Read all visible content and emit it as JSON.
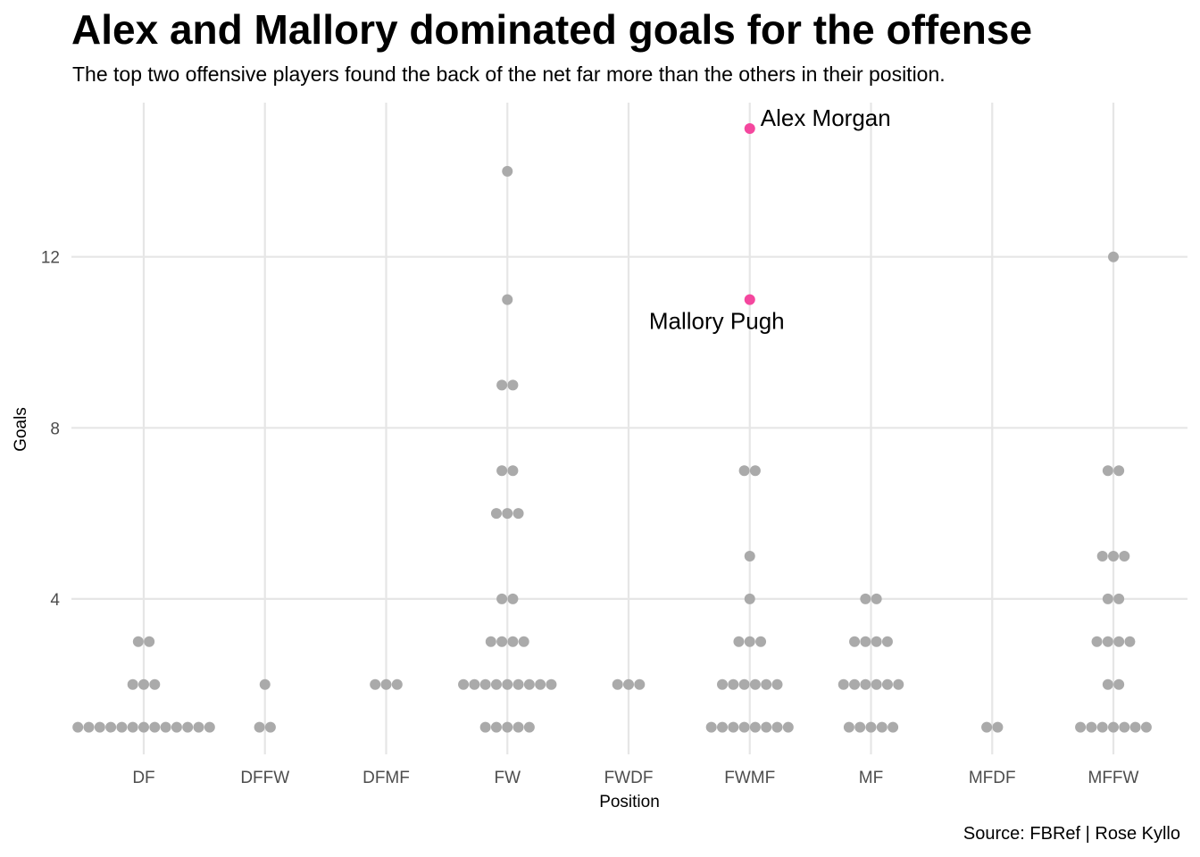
{
  "chart_data": {
    "type": "scatter",
    "subtype": "dotplot",
    "title": "Alex and Mallory dominated goals for the offense",
    "subtitle": "The top two offensive players found the back of the net far more than the others in their position.",
    "caption": "Source: FBRef | Rose Kyllo",
    "xlabel": "Position",
    "ylabel": "Goals",
    "categories": [
      "DF",
      "DFFW",
      "DFMF",
      "FW",
      "FWDF",
      "FWMF",
      "MF",
      "MFDF",
      "MFFW"
    ],
    "y_ticks": [
      4,
      8,
      12
    ],
    "ylim": [
      0.4,
      15.9
    ],
    "grid": true,
    "base_color": "#aaaaaa",
    "highlight_color": "#f4479e",
    "points": [
      {
        "position": "DF",
        "goals": 1,
        "count": 13
      },
      {
        "position": "DF",
        "goals": 2,
        "count": 3
      },
      {
        "position": "DF",
        "goals": 3,
        "count": 2
      },
      {
        "position": "DFFW",
        "goals": 1,
        "count": 2
      },
      {
        "position": "DFFW",
        "goals": 2,
        "count": 1
      },
      {
        "position": "DFMF",
        "goals": 2,
        "count": 3
      },
      {
        "position": "FW",
        "goals": 1,
        "count": 5
      },
      {
        "position": "FW",
        "goals": 2,
        "count": 9
      },
      {
        "position": "FW",
        "goals": 3,
        "count": 4
      },
      {
        "position": "FW",
        "goals": 4,
        "count": 2
      },
      {
        "position": "FW",
        "goals": 6,
        "count": 3
      },
      {
        "position": "FW",
        "goals": 7,
        "count": 2
      },
      {
        "position": "FW",
        "goals": 9,
        "count": 2
      },
      {
        "position": "FW",
        "goals": 11,
        "count": 1
      },
      {
        "position": "FW",
        "goals": 14,
        "count": 1
      },
      {
        "position": "FWDF",
        "goals": 2,
        "count": 3
      },
      {
        "position": "FWMF",
        "goals": 1,
        "count": 8
      },
      {
        "position": "FWMF",
        "goals": 2,
        "count": 6
      },
      {
        "position": "FWMF",
        "goals": 3,
        "count": 3
      },
      {
        "position": "FWMF",
        "goals": 4,
        "count": 1
      },
      {
        "position": "FWMF",
        "goals": 5,
        "count": 1
      },
      {
        "position": "FWMF",
        "goals": 7,
        "count": 2
      },
      {
        "position": "MF",
        "goals": 1,
        "count": 5
      },
      {
        "position": "MF",
        "goals": 2,
        "count": 6
      },
      {
        "position": "MF",
        "goals": 3,
        "count": 4
      },
      {
        "position": "MF",
        "goals": 4,
        "count": 2
      },
      {
        "position": "MFDF",
        "goals": 1,
        "count": 2
      },
      {
        "position": "MFFW",
        "goals": 1,
        "count": 7
      },
      {
        "position": "MFFW",
        "goals": 2,
        "count": 2
      },
      {
        "position": "MFFW",
        "goals": 3,
        "count": 4
      },
      {
        "position": "MFFW",
        "goals": 4,
        "count": 2
      },
      {
        "position": "MFFW",
        "goals": 5,
        "count": 3
      },
      {
        "position": "MFFW",
        "goals": 7,
        "count": 2
      },
      {
        "position": "MFFW",
        "goals": 12,
        "count": 1
      }
    ],
    "highlights": [
      {
        "name": "Alex Morgan",
        "position": "FWMF",
        "goals": 15
      },
      {
        "name": "Mallory Pugh",
        "position": "FWMF",
        "goals": 11
      }
    ]
  }
}
